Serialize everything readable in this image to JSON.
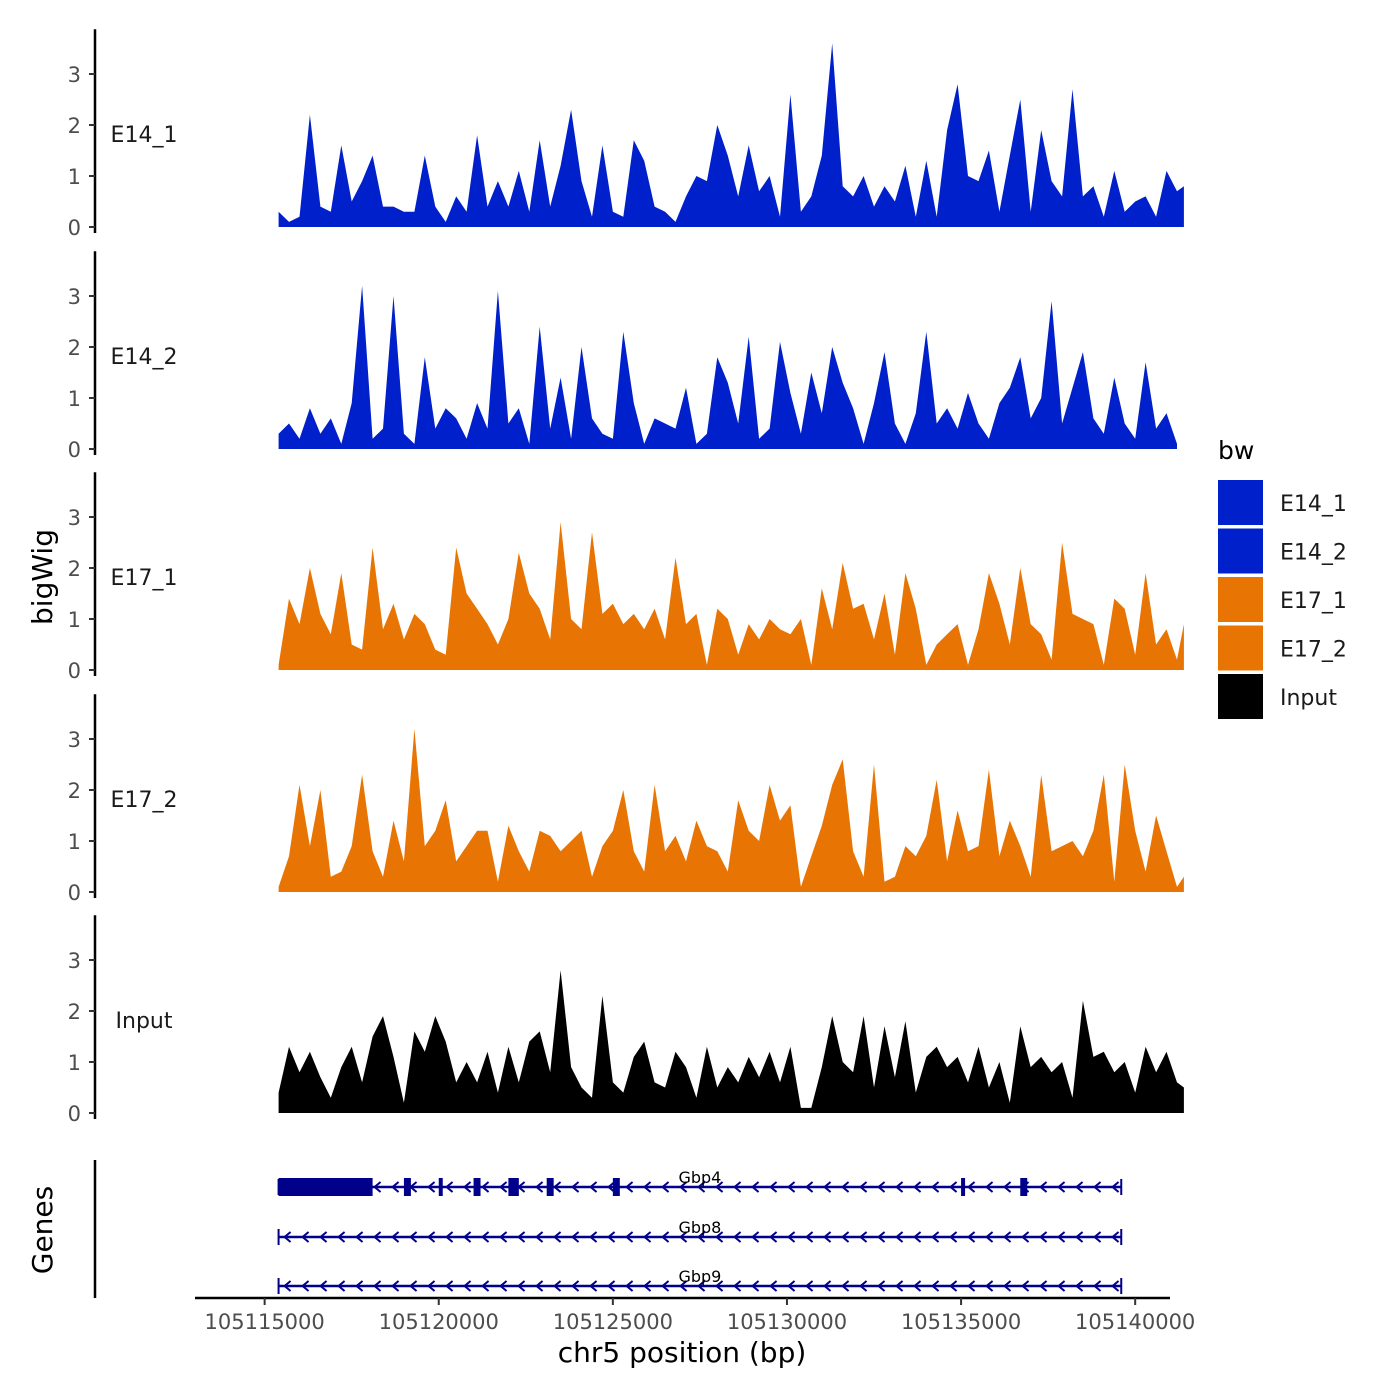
{
  "chart_data": {
    "type": "area",
    "y_axis_title": "bigWig",
    "x_axis_title": "chr5 position (bp)",
    "gene_axis_title": "Genes",
    "x_range": [
      105113000,
      105141000
    ],
    "x_ticks": [
      105115000,
      105120000,
      105125000,
      105130000,
      105135000,
      105140000
    ],
    "x_tick_labels": [
      "105115000",
      "105120000",
      "105125000",
      "105130000",
      "105135000",
      "105140000"
    ],
    "y_range": [
      0,
      3.8
    ],
    "y_ticks": [
      0,
      1,
      2,
      3
    ],
    "y_tick_labels": [
      "0",
      "1",
      "2",
      "3"
    ],
    "colors": {
      "E14_1": "#0020CC",
      "E14_2": "#0020CC",
      "E17_1": "#E87503",
      "E17_2": "#E87503",
      "Input": "#000000",
      "gene": "#00008B",
      "axis": "#000000"
    },
    "legend": {
      "title": "bw",
      "entries": [
        {
          "label": "E14_1",
          "color": "#0020CC"
        },
        {
          "label": "E14_2",
          "color": "#0020CC"
        },
        {
          "label": "E17_1",
          "color": "#E87503"
        },
        {
          "label": "E17_2",
          "color": "#E87503"
        },
        {
          "label": "Input",
          "color": "#000000"
        }
      ]
    },
    "series": [
      {
        "name": "E14_1",
        "label": "E14_1",
        "color": "#0020CC",
        "x": [
          105115400,
          105115700,
          105116000,
          105116300,
          105116600,
          105116900,
          105117200,
          105117500,
          105117800,
          105118100,
          105118400,
          105118700,
          105119000,
          105119300,
          105119600,
          105119900,
          105120200,
          105120500,
          105120800,
          105121100,
          105121400,
          105121700,
          105122000,
          105122300,
          105122600,
          105122900,
          105123200,
          105123500,
          105123800,
          105124100,
          105124400,
          105124700,
          105125000,
          105125300,
          105125600,
          105125900,
          105126200,
          105126500,
          105126800,
          105127100,
          105127400,
          105127700,
          105128000,
          105128300,
          105128600,
          105128900,
          105129200,
          105129500,
          105129800,
          105130100,
          105130400,
          105130700,
          105131000,
          105131300,
          105131600,
          105131900,
          105132200,
          105132500,
          105132800,
          105133100,
          105133400,
          105133700,
          105134000,
          105134300,
          105134600,
          105134900,
          105135200,
          105135500,
          105135800,
          105136100,
          105136400,
          105136700,
          105137000,
          105137300,
          105137600,
          105137900,
          105138200,
          105138500,
          105138800,
          105139100,
          105139400,
          105139700,
          105140000,
          105140300,
          105140600,
          105140900,
          105141200,
          105141400
        ],
        "y": [
          0.3,
          0.1,
          0.2,
          2.2,
          0.4,
          0.3,
          1.6,
          0.5,
          0.9,
          1.4,
          0.4,
          0.4,
          0.3,
          0.3,
          1.4,
          0.4,
          0.1,
          0.6,
          0.3,
          1.8,
          0.4,
          0.9,
          0.4,
          1.1,
          0.3,
          1.7,
          0.4,
          1.2,
          2.3,
          0.9,
          0.2,
          1.6,
          0.3,
          0.2,
          1.7,
          1.3,
          0.4,
          0.3,
          0.1,
          0.6,
          1.0,
          0.9,
          2.0,
          1.4,
          0.6,
          1.6,
          0.7,
          1.0,
          0.2,
          2.6,
          0.3,
          0.6,
          1.4,
          3.6,
          0.8,
          0.6,
          1.0,
          0.4,
          0.8,
          0.5,
          1.2,
          0.2,
          1.3,
          0.2,
          1.9,
          2.8,
          1.0,
          0.9,
          1.5,
          0.3,
          1.4,
          2.5,
          0.3,
          1.9,
          0.9,
          0.6,
          2.7,
          0.6,
          0.8,
          0.2,
          1.1,
          0.3,
          0.5,
          0.6,
          0.2,
          1.1,
          0.7,
          0.8
        ]
      },
      {
        "name": "E14_2",
        "label": "E14_2",
        "color": "#0020CC",
        "x": [
          105115400,
          105115700,
          105116000,
          105116300,
          105116600,
          105116900,
          105117200,
          105117500,
          105117800,
          105118100,
          105118400,
          105118700,
          105119000,
          105119300,
          105119600,
          105119900,
          105120200,
          105120500,
          105120800,
          105121100,
          105121400,
          105121700,
          105122000,
          105122300,
          105122600,
          105122900,
          105123200,
          105123500,
          105123800,
          105124100,
          105124400,
          105124700,
          105125000,
          105125300,
          105125600,
          105125900,
          105126200,
          105126500,
          105126800,
          105127100,
          105127400,
          105127700,
          105128000,
          105128300,
          105128600,
          105128900,
          105129200,
          105129500,
          105129800,
          105130100,
          105130400,
          105130700,
          105131000,
          105131300,
          105131600,
          105131900,
          105132200,
          105132500,
          105132800,
          105133100,
          105133400,
          105133700,
          105134000,
          105134300,
          105134600,
          105134900,
          105135200,
          105135500,
          105135800,
          105136100,
          105136400,
          105136700,
          105137000,
          105137300,
          105137600,
          105137900,
          105138200,
          105138500,
          105138800,
          105139100,
          105139400,
          105139700,
          105140000,
          105140300,
          105140600,
          105140900,
          105141200
        ],
        "y": [
          0.3,
          0.5,
          0.2,
          0.8,
          0.3,
          0.6,
          0.1,
          0.9,
          3.2,
          0.2,
          0.4,
          3.0,
          0.3,
          0.1,
          1.8,
          0.4,
          0.8,
          0.6,
          0.2,
          0.9,
          0.4,
          3.1,
          0.5,
          0.8,
          0.1,
          2.4,
          0.4,
          1.4,
          0.2,
          2.0,
          0.6,
          0.3,
          0.2,
          2.3,
          0.9,
          0.1,
          0.6,
          0.5,
          0.4,
          1.2,
          0.1,
          0.3,
          1.8,
          1.3,
          0.5,
          2.2,
          0.2,
          0.4,
          2.1,
          1.1,
          0.3,
          1.5,
          0.7,
          2.0,
          1.3,
          0.8,
          0.1,
          0.9,
          1.9,
          0.5,
          0.1,
          0.7,
          2.3,
          0.5,
          0.8,
          0.4,
          1.1,
          0.5,
          0.2,
          0.9,
          1.2,
          1.8,
          0.6,
          1.0,
          2.9,
          0.5,
          1.2,
          1.9,
          0.6,
          0.3,
          1.4,
          0.5,
          0.2,
          1.7,
          0.4,
          0.7,
          0.1
        ]
      },
      {
        "name": "E17_1",
        "label": "E17_1",
        "color": "#E87503",
        "x": [
          105115400,
          105115700,
          105116000,
          105116300,
          105116600,
          105116900,
          105117200,
          105117500,
          105117800,
          105118100,
          105118400,
          105118700,
          105119000,
          105119300,
          105119600,
          105119900,
          105120200,
          105120500,
          105120800,
          105121100,
          105121400,
          105121700,
          105122000,
          105122300,
          105122600,
          105122900,
          105123200,
          105123500,
          105123800,
          105124100,
          105124400,
          105124700,
          105125000,
          105125300,
          105125600,
          105125900,
          105126200,
          105126500,
          105126800,
          105127100,
          105127400,
          105127700,
          105128000,
          105128300,
          105128600,
          105128900,
          105129200,
          105129500,
          105129800,
          105130100,
          105130400,
          105130700,
          105131000,
          105131300,
          105131600,
          105131900,
          105132200,
          105132500,
          105132800,
          105133100,
          105133400,
          105133700,
          105134000,
          105134300,
          105134600,
          105134900,
          105135200,
          105135500,
          105135800,
          105136100,
          105136400,
          105136700,
          105137000,
          105137300,
          105137600,
          105137900,
          105138200,
          105138500,
          105138800,
          105139100,
          105139400,
          105139700,
          105140000,
          105140300,
          105140600,
          105140900,
          105141200,
          105141400
        ],
        "y": [
          0.1,
          1.4,
          0.9,
          2.0,
          1.1,
          0.7,
          1.9,
          0.5,
          0.4,
          2.4,
          0.8,
          1.3,
          0.6,
          1.1,
          0.9,
          0.4,
          0.3,
          2.4,
          1.5,
          1.2,
          0.9,
          0.5,
          1.0,
          2.3,
          1.5,
          1.2,
          0.6,
          2.9,
          1.0,
          0.8,
          2.7,
          1.1,
          1.3,
          0.9,
          1.1,
          0.8,
          1.2,
          0.6,
          2.2,
          0.9,
          1.1,
          0.1,
          1.2,
          1.0,
          0.3,
          0.9,
          0.6,
          1.0,
          0.8,
          0.7,
          1.0,
          0.1,
          1.6,
          0.8,
          2.1,
          1.2,
          1.3,
          0.6,
          1.5,
          0.3,
          1.9,
          1.2,
          0.1,
          0.5,
          0.7,
          0.9,
          0.1,
          0.8,
          1.9,
          1.3,
          0.5,
          2.0,
          0.9,
          0.7,
          0.2,
          2.5,
          1.1,
          1.0,
          0.9,
          0.1,
          1.4,
          1.2,
          0.3,
          1.9,
          0.5,
          0.8,
          0.2,
          0.9
        ]
      },
      {
        "name": "E17_2",
        "label": "E17_2",
        "color": "#E87503",
        "x": [
          105115400,
          105115700,
          105116000,
          105116300,
          105116600,
          105116900,
          105117200,
          105117500,
          105117800,
          105118100,
          105118400,
          105118700,
          105119000,
          105119300,
          105119600,
          105119900,
          105120200,
          105120500,
          105120800,
          105121100,
          105121400,
          105121700,
          105122000,
          105122300,
          105122600,
          105122900,
          105123200,
          105123500,
          105123800,
          105124100,
          105124400,
          105124700,
          105125000,
          105125300,
          105125600,
          105125900,
          105126200,
          105126500,
          105126800,
          105127100,
          105127400,
          105127700,
          105128000,
          105128300,
          105128600,
          105128900,
          105129200,
          105129500,
          105129800,
          105130100,
          105130400,
          105130700,
          105131000,
          105131300,
          105131600,
          105131900,
          105132200,
          105132500,
          105132800,
          105133100,
          105133400,
          105133700,
          105134000,
          105134300,
          105134600,
          105134900,
          105135200,
          105135500,
          105135800,
          105136100,
          105136400,
          105136700,
          105137000,
          105137300,
          105137600,
          105137900,
          105138200,
          105138500,
          105138800,
          105139100,
          105139400,
          105139700,
          105140000,
          105140300,
          105140600,
          105140900,
          105141200,
          105141400
        ],
        "y": [
          0.1,
          0.7,
          2.1,
          0.9,
          2.0,
          0.3,
          0.4,
          0.9,
          2.3,
          0.8,
          0.3,
          1.4,
          0.6,
          3.2,
          0.9,
          1.2,
          1.8,
          0.6,
          0.9,
          1.2,
          1.2,
          0.2,
          1.3,
          0.8,
          0.4,
          1.2,
          1.1,
          0.8,
          1.0,
          1.2,
          0.3,
          0.9,
          1.2,
          2.0,
          0.8,
          0.4,
          2.1,
          0.8,
          1.1,
          0.6,
          1.4,
          0.9,
          0.8,
          0.4,
          1.8,
          1.2,
          1.0,
          2.1,
          1.4,
          1.7,
          0.1,
          0.7,
          1.3,
          2.1,
          2.6,
          0.8,
          0.3,
          2.5,
          0.2,
          0.3,
          0.9,
          0.7,
          1.1,
          2.2,
          0.6,
          1.6,
          0.8,
          0.9,
          2.4,
          0.7,
          1.4,
          0.9,
          0.3,
          2.3,
          0.8,
          0.9,
          1.0,
          0.7,
          1.2,
          2.3,
          0.2,
          2.5,
          1.2,
          0.4,
          1.5,
          0.8,
          0.1,
          0.3
        ]
      },
      {
        "name": "Input",
        "label": "Input",
        "color": "#000000",
        "x": [
          105115400,
          105115700,
          105116000,
          105116300,
          105116600,
          105116900,
          105117200,
          105117500,
          105117800,
          105118100,
          105118400,
          105118700,
          105119000,
          105119300,
          105119600,
          105119900,
          105120200,
          105120500,
          105120800,
          105121100,
          105121400,
          105121700,
          105122000,
          105122300,
          105122600,
          105122900,
          105123200,
          105123500,
          105123800,
          105124100,
          105124400,
          105124700,
          105125000,
          105125300,
          105125600,
          105125900,
          105126200,
          105126500,
          105126800,
          105127100,
          105127400,
          105127700,
          105128000,
          105128300,
          105128600,
          105128900,
          105129200,
          105129500,
          105129800,
          105130100,
          105130400,
          105130700,
          105131000,
          105131300,
          105131600,
          105131900,
          105132200,
          105132500,
          105132800,
          105133100,
          105133400,
          105133700,
          105134000,
          105134300,
          105134600,
          105134900,
          105135200,
          105135500,
          105135800,
          105136100,
          105136400,
          105136700,
          105137000,
          105137300,
          105137600,
          105137900,
          105138200,
          105138500,
          105138800,
          105139100,
          105139400,
          105139700,
          105140000,
          105140300,
          105140600,
          105140900,
          105141200,
          105141400
        ],
        "y": [
          0.4,
          1.3,
          0.8,
          1.2,
          0.7,
          0.3,
          0.9,
          1.3,
          0.6,
          1.5,
          1.9,
          1.1,
          0.2,
          1.6,
          1.2,
          1.9,
          1.4,
          0.6,
          1.0,
          0.6,
          1.2,
          0.4,
          1.3,
          0.6,
          1.4,
          1.6,
          0.8,
          2.8,
          0.9,
          0.5,
          0.3,
          2.3,
          0.6,
          0.4,
          1.1,
          1.4,
          0.6,
          0.5,
          1.2,
          0.9,
          0.3,
          1.3,
          0.5,
          0.9,
          0.6,
          1.1,
          0.7,
          1.2,
          0.6,
          1.3,
          0.1,
          0.1,
          0.9,
          1.9,
          1.0,
          0.8,
          1.9,
          0.5,
          1.7,
          0.7,
          1.8,
          0.4,
          1.1,
          1.3,
          0.9,
          1.1,
          0.6,
          1.3,
          0.5,
          1.0,
          0.2,
          1.7,
          0.9,
          1.1,
          0.8,
          1.0,
          0.3,
          2.2,
          1.1,
          1.2,
          0.8,
          1.0,
          0.4,
          1.3,
          0.8,
          1.2,
          0.6,
          0.5
        ]
      }
    ],
    "genes": [
      {
        "name": "Gbp4",
        "start": 105115400,
        "end": 105139600,
        "strand": "-",
        "exons": [
          [
            105115400,
            105118100
          ],
          [
            105119000,
            105119200
          ],
          [
            105120000,
            105120100
          ],
          [
            105121000,
            105121200
          ],
          [
            105122000,
            105122300
          ],
          [
            105123100,
            105123300
          ],
          [
            105125000,
            105125200
          ],
          [
            105135000,
            105135100
          ],
          [
            105136700,
            105136900
          ]
        ]
      },
      {
        "name": "Gbp8",
        "start": 105115400,
        "end": 105139600,
        "strand": "-",
        "exons": []
      },
      {
        "name": "Gbp9",
        "start": 105115400,
        "end": 105139600,
        "strand": "-",
        "exons": []
      }
    ]
  }
}
